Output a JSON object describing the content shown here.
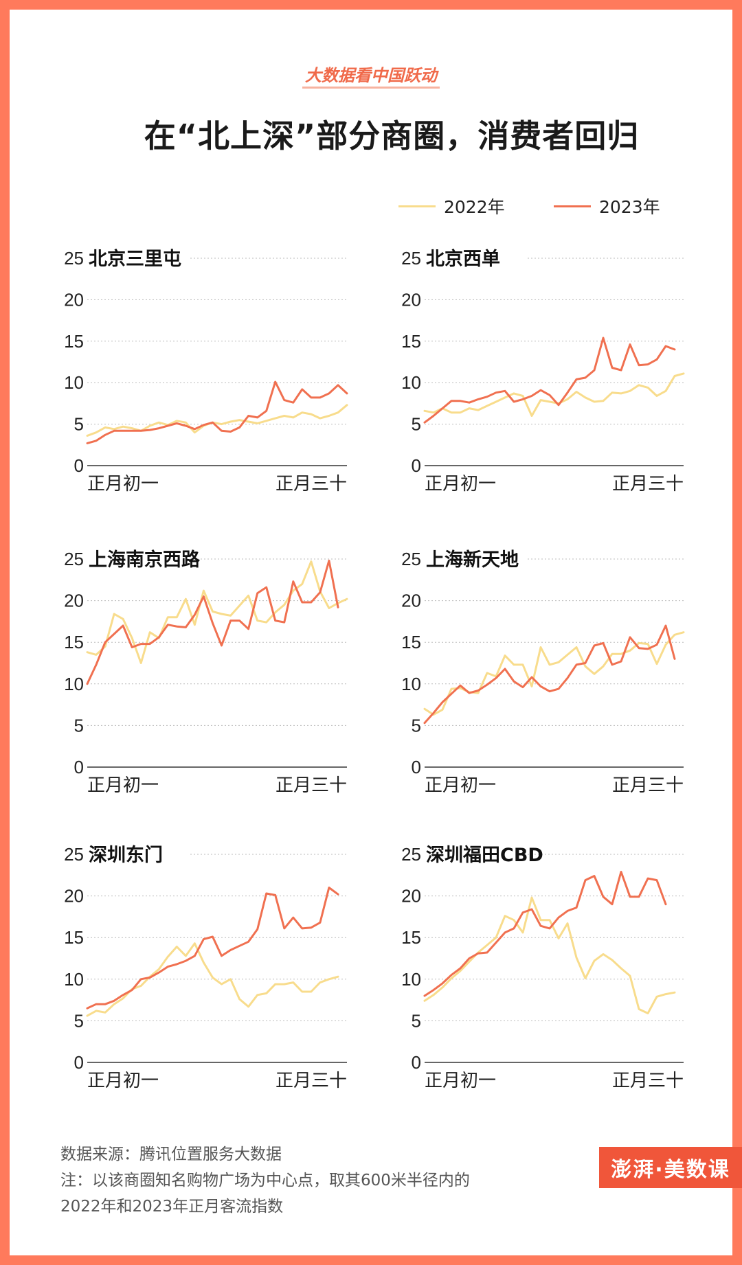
{
  "header": {
    "kicker": "大数据看中国跃动",
    "title": "在“北上深”部分商圈，消费者回归"
  },
  "legend": [
    {
      "label": "2022年",
      "color": "#F8DC8C"
    },
    {
      "label": "2023年",
      "color": "#F07050"
    }
  ],
  "footer": {
    "source": "数据来源：腾讯位置服务大数据",
    "note_line1": "注：以该商圈知名购物广场为中心点，取其600米半径内的",
    "note_line2": "2022年和2023年正月客流指数",
    "logo": "澎湃·美数课"
  },
  "chart_data": [
    {
      "type": "line",
      "title": "北京三里屯",
      "x_start_label": "正月初一",
      "x_end_label": "正月三十",
      "ylim": [
        0,
        25
      ],
      "yticks": [
        0,
        5,
        10,
        15,
        20,
        25
      ],
      "grid": true,
      "series": [
        {
          "name": "2022年",
          "values": [
            3.6,
            4.0,
            4.6,
            4.4,
            4.7,
            4.5,
            4.2,
            4.8,
            5.2,
            4.9,
            5.4,
            5.2,
            4.0,
            4.8,
            5.2,
            5.0,
            5.3,
            5.5,
            5.3,
            5.1,
            5.4,
            5.7,
            6.0,
            5.8,
            6.4,
            6.2,
            5.7,
            6.0,
            6.4,
            7.3
          ]
        },
        {
          "name": "2023年",
          "values": [
            2.7,
            3.0,
            3.7,
            4.2,
            4.2,
            4.2,
            4.2,
            4.3,
            4.5,
            4.8,
            5.1,
            4.8,
            4.4,
            4.9,
            5.2,
            4.2,
            4.1,
            4.6,
            6.0,
            5.8,
            6.6,
            10.1,
            7.9,
            7.6,
            9.2,
            8.2,
            8.2,
            8.7,
            9.7,
            8.7
          ]
        }
      ]
    },
    {
      "type": "line",
      "title": "北京西单",
      "x_start_label": "正月初一",
      "x_end_label": "正月三十",
      "ylim": [
        0,
        25
      ],
      "yticks": [
        0,
        5,
        10,
        15,
        20,
        25
      ],
      "grid": true,
      "series": [
        {
          "name": "2022年",
          "values": [
            6.6,
            6.4,
            6.9,
            6.4,
            6.4,
            6.9,
            6.7,
            7.2,
            7.7,
            8.2,
            8.7,
            8.4,
            6.0,
            7.9,
            7.7,
            7.5,
            8.0,
            8.9,
            8.2,
            7.7,
            7.8,
            8.8,
            8.7,
            9.0,
            9.7,
            9.4,
            8.4,
            9.0,
            10.8,
            11.1
          ]
        },
        {
          "name": "2023年",
          "values": [
            5.2,
            6.0,
            6.9,
            7.8,
            7.8,
            7.6,
            8.0,
            8.3,
            8.8,
            9.0,
            7.7,
            8.0,
            8.4,
            9.1,
            8.5,
            7.3,
            8.8,
            10.4,
            10.6,
            11.5,
            15.4,
            11.8,
            11.5,
            14.6,
            12.1,
            12.2,
            12.8,
            14.4,
            14.0
          ]
        }
      ]
    },
    {
      "type": "line",
      "title": "上海南京西路",
      "x_start_label": "正月初一",
      "x_end_label": "正月三十",
      "ylim": [
        0,
        25
      ],
      "yticks": [
        0,
        5,
        10,
        15,
        20,
        25
      ],
      "grid": true,
      "series": [
        {
          "name": "2022年",
          "values": [
            13.8,
            13.5,
            14.5,
            18.4,
            17.8,
            15.5,
            12.5,
            16.2,
            15.5,
            18.0,
            18.0,
            20.2,
            17.1,
            21.2,
            18.7,
            18.4,
            18.2,
            19.4,
            20.6,
            17.6,
            17.4,
            18.6,
            19.5,
            21.2,
            22.0,
            24.7,
            21.1,
            19.1,
            19.7,
            20.2
          ]
        },
        {
          "name": "2023年",
          "values": [
            10.0,
            12.3,
            15.0,
            16.0,
            17.0,
            14.4,
            14.8,
            14.8,
            15.6,
            17.1,
            16.9,
            16.8,
            18.3,
            20.5,
            17.3,
            14.6,
            17.6,
            17.6,
            16.6,
            20.9,
            21.6,
            17.6,
            17.4,
            22.3,
            19.8,
            19.8,
            21.0,
            24.8,
            19.2
          ]
        }
      ]
    },
    {
      "type": "line",
      "title": "上海新天地",
      "x_start_label": "正月初一",
      "x_end_label": "正月三十",
      "ylim": [
        0,
        25
      ],
      "yticks": [
        0,
        5,
        10,
        15,
        20,
        25
      ],
      "grid": true,
      "series": [
        {
          "name": "2022年",
          "values": [
            7.0,
            6.3,
            6.9,
            9.4,
            9.5,
            9.0,
            8.9,
            11.3,
            10.9,
            13.4,
            12.3,
            12.3,
            9.7,
            14.4,
            12.3,
            12.6,
            13.5,
            14.4,
            12.1,
            11.2,
            12.1,
            13.6,
            13.6,
            14.0,
            14.9,
            14.8,
            12.4,
            14.7,
            15.9,
            16.2
          ]
        },
        {
          "name": "2023年",
          "values": [
            5.3,
            6.5,
            7.8,
            8.8,
            9.8,
            8.9,
            9.2,
            9.9,
            10.7,
            11.8,
            10.3,
            9.6,
            10.8,
            9.7,
            9.1,
            9.4,
            10.7,
            12.3,
            12.5,
            14.6,
            14.9,
            12.3,
            12.7,
            15.6,
            14.3,
            14.2,
            14.7,
            17.0,
            13.0
          ]
        }
      ]
    },
    {
      "type": "line",
      "title": "深圳东门",
      "x_start_label": "正月初一",
      "x_end_label": "正月三十",
      "ylim": [
        0,
        25
      ],
      "yticks": [
        0,
        5,
        10,
        15,
        20,
        25
      ],
      "grid": true,
      "series": [
        {
          "name": "2022年",
          "values": [
            5.6,
            6.2,
            6.0,
            7.0,
            7.7,
            8.8,
            9.2,
            10.3,
            11.2,
            12.7,
            13.9,
            12.8,
            14.3,
            12.0,
            10.2,
            9.4,
            10.0,
            7.6,
            6.7,
            8.1,
            8.3,
            9.4,
            9.4,
            9.6,
            8.5,
            8.5,
            9.6,
            10.0,
            10.3
          ]
        },
        {
          "name": "2023年",
          "values": [
            6.5,
            7.0,
            7.0,
            7.4,
            8.1,
            8.7,
            10.0,
            10.2,
            10.8,
            11.5,
            11.8,
            12.2,
            12.8,
            14.8,
            15.1,
            12.8,
            13.5,
            14.0,
            14.5,
            16.0,
            20.3,
            20.1,
            16.1,
            17.4,
            16.1,
            16.2,
            16.8,
            21.0,
            20.2
          ]
        }
      ]
    },
    {
      "type": "line",
      "title": "深圳福田CBD",
      "x_start_label": "正月初一",
      "x_end_label": "正月三十",
      "ylim": [
        0,
        25
      ],
      "yticks": [
        0,
        5,
        10,
        15,
        20,
        25
      ],
      "grid": true,
      "series": [
        {
          "name": "2022年",
          "values": [
            7.4,
            8.1,
            9.0,
            10.1,
            11.0,
            12.1,
            13.2,
            14.1,
            15.0,
            17.6,
            17.1,
            15.6,
            19.8,
            17.1,
            17.1,
            14.9,
            16.7,
            12.6,
            10.1,
            12.2,
            13.0,
            12.3,
            11.3,
            10.4,
            6.4,
            5.9,
            7.9,
            8.2,
            8.4
          ]
        },
        {
          "name": "2023年",
          "values": [
            8.0,
            8.7,
            9.5,
            10.5,
            11.3,
            12.5,
            13.1,
            13.2,
            14.4,
            15.6,
            16.1,
            18.0,
            18.4,
            16.4,
            16.1,
            17.4,
            18.2,
            18.6,
            21.9,
            22.4,
            19.9,
            19.0,
            22.9,
            19.9,
            19.9,
            22.1,
            21.9,
            19.0
          ]
        }
      ]
    }
  ]
}
